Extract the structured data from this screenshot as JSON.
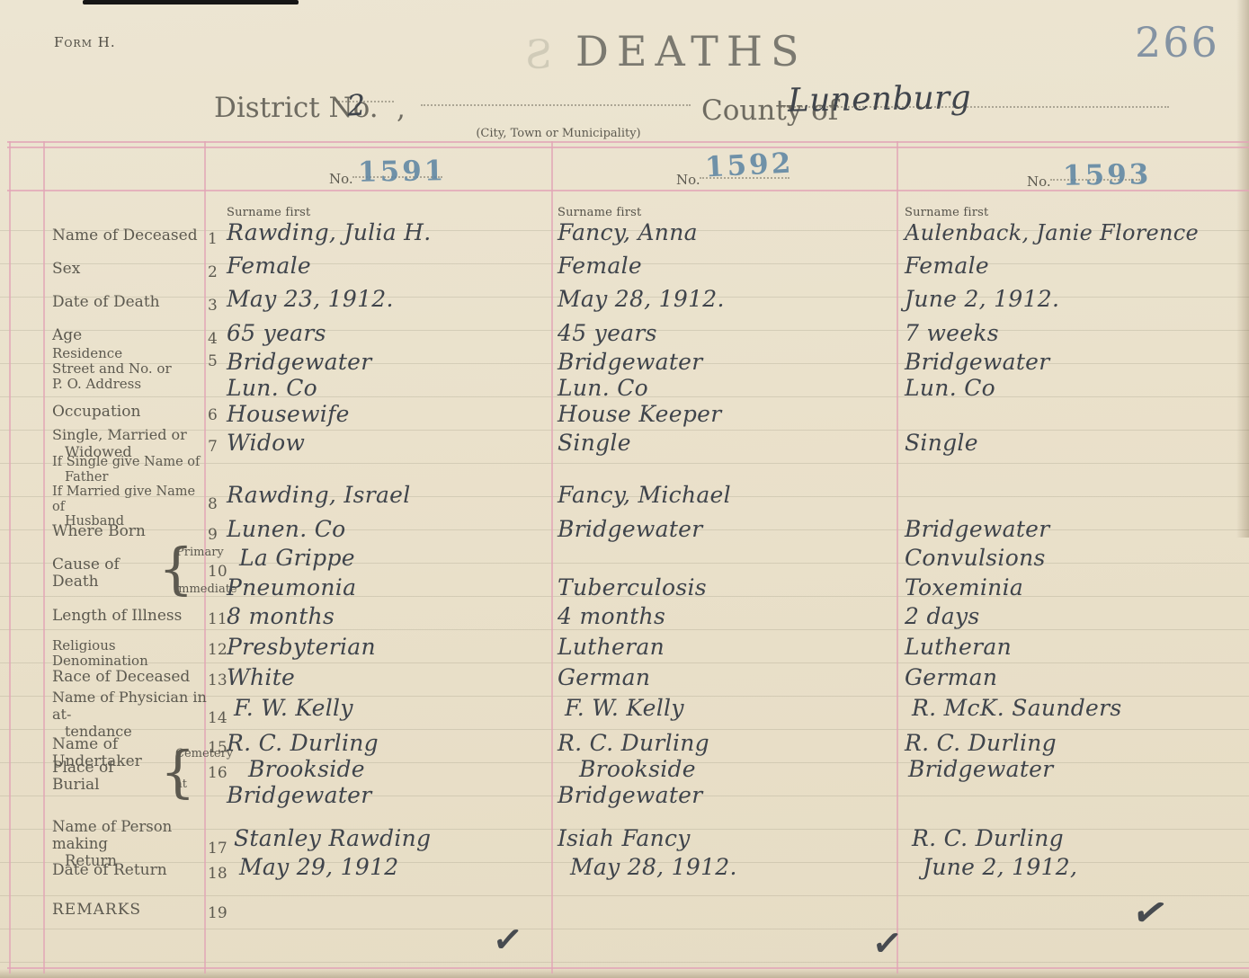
{
  "page": {
    "form_label": "Form H.",
    "title": "DEATHS",
    "ghost_letter": "S",
    "page_number": "266",
    "district_label": "District No.",
    "district_value": "2",
    "district_comma": ",",
    "city_caption": "(City, Town or Municipality)",
    "county_label": "County of",
    "county_value": "Lunenburg"
  },
  "colors": {
    "paper": "#eae1cb",
    "register_line_pink": "#e2a5b6",
    "stamp_blue": "#5f86a3",
    "handwriting_ink": "#3f444b",
    "print_ink": "#5d5a50"
  },
  "table": {
    "no_label": "No.",
    "surname_note": "Surname first",
    "row_labels": {
      "name": {
        "num": "1",
        "label": "Name of Deceased"
      },
      "sex": {
        "num": "2",
        "label": "Sex"
      },
      "date_of_death": {
        "num": "3",
        "label": "Date of Death"
      },
      "age": {
        "num": "4",
        "label": "Age"
      },
      "residence": {
        "num": "5",
        "line1": "Residence",
        "line2": "Street and No. or",
        "line3": "P. O. Address"
      },
      "occupation": {
        "num": "6",
        "label": "Occupation"
      },
      "marital": {
        "num": "7",
        "line1": "Single, Married or",
        "line2": "Widowed"
      },
      "father_husband": {
        "num": "8",
        "line1": "If Single give Name of",
        "line2": "Father",
        "line3": "If Married give Name of",
        "line4": "Husband"
      },
      "where_born": {
        "num": "9",
        "label": "Where Born"
      },
      "cause_of_death": {
        "num": "10",
        "label": "Cause of Death",
        "brace": "{",
        "option1": "Primary",
        "option2": "Immediate"
      },
      "length_of_illness": {
        "num": "11",
        "label": "Length of Illness"
      },
      "religious_denomination": {
        "num": "12",
        "label": "Religious Denomination"
      },
      "race": {
        "num": "13",
        "label": "Race of Deceased"
      },
      "physician": {
        "num": "14",
        "line1": "Name of Physician in at-",
        "line2": "tendance"
      },
      "undertaker": {
        "num": "15",
        "label": "Name of Undertaker"
      },
      "place_of_burial": {
        "num": "16",
        "label": "Place of Burial",
        "brace": "{",
        "option1": "Cemetery",
        "option2": "at"
      },
      "person_making_return": {
        "num": "17",
        "line1": "Name of Person making",
        "line2": "Return"
      },
      "date_of_return": {
        "num": "18",
        "label": "Date of Return"
      },
      "remarks": {
        "num": "19",
        "label": "REMARKS"
      }
    },
    "records": [
      {
        "no": "1591",
        "name": "Rawding, Julia H.",
        "sex": "Female",
        "date_of_death": "May 23, 1912.",
        "age": "65 years",
        "residence1": "Bridgewater",
        "residence2": "Lun. Co",
        "occupation": "Housewife",
        "marital": "Widow",
        "father_husband": "Rawding, Israel",
        "where_born": "Lunen. Co",
        "cause_primary": "La Grippe",
        "cause_immediate": "Pneumonia",
        "length_of_illness": "8 months",
        "religious_denomination": "Presbyterian",
        "race": "White",
        "physician": "F. W. Kelly",
        "undertaker": "R. C. Durling",
        "burial1": "Brookside",
        "burial2": "Bridgewater",
        "person_making_return": "Stanley Rawding",
        "date_of_return": "May 29, 1912",
        "remarks": "",
        "checkmark": "✓"
      },
      {
        "no": "1592",
        "name": "Fancy, Anna",
        "sex": "Female",
        "date_of_death": "May 28, 1912.",
        "age": "45 years",
        "residence1": "Bridgewater",
        "residence2": "Lun. Co",
        "occupation": "House Keeper",
        "marital": "Single",
        "father_husband": "Fancy, Michael",
        "where_born": "Bridgewater",
        "cause_primary": "",
        "cause_immediate": "Tuberculosis",
        "length_of_illness": "4 months",
        "religious_denomination": "Lutheran",
        "race": "German",
        "physician": "F. W. Kelly",
        "undertaker": "R. C. Durling",
        "burial1": "Brookside",
        "burial2": "Bridgewater",
        "person_making_return": "Isiah Fancy",
        "date_of_return": "May 28, 1912.",
        "remarks": "",
        "checkmark": "✓"
      },
      {
        "no": "1593",
        "name": "Aulenback, Janie Florence",
        "sex": "Female",
        "date_of_death": "June 2, 1912.",
        "age": "7 weeks",
        "residence1": "Bridgewater",
        "residence2": "Lun. Co",
        "occupation": "",
        "marital": "Single",
        "father_husband": "",
        "where_born": "Bridgewater",
        "cause_primary": "Convulsions",
        "cause_immediate": "Toxeminia",
        "length_of_illness": "2 days",
        "religious_denomination": "Lutheran",
        "race": "German",
        "physician": "R. McK. Saunders",
        "undertaker": "R. C. Durling",
        "burial1": "Bridgewater",
        "burial2": "",
        "person_making_return": "R. C. Durling",
        "date_of_return": "June 2, 1912,",
        "remarks": "",
        "checkmark": "✓"
      }
    ]
  }
}
